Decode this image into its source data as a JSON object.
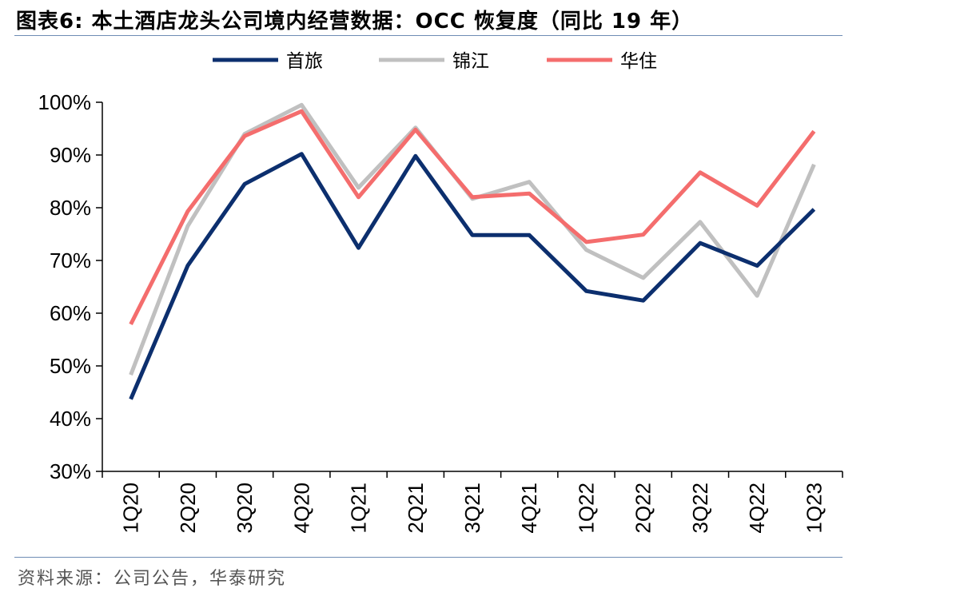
{
  "header": {
    "title": "图表6:  本土酒店龙头公司境内经营数据：OCC 恢复度（同比 19 年）"
  },
  "footer": {
    "source": "资料来源：公司公告，华泰研究"
  },
  "chart_data": {
    "type": "line",
    "categories": [
      "1Q20",
      "2Q20",
      "3Q20",
      "4Q20",
      "1Q21",
      "2Q21",
      "3Q21",
      "4Q21",
      "1Q22",
      "2Q22",
      "3Q22",
      "4Q22",
      "1Q23"
    ],
    "series": [
      {
        "name": "首旅",
        "color": "#0c2f6e",
        "values": [
          43.7,
          69,
          84.5,
          90.2,
          72.4,
          89.8,
          74.8,
          74.8,
          64.2,
          62.4,
          73.3,
          69,
          79.7
        ]
      },
      {
        "name": "锦江",
        "color": "#c0c0c0",
        "values": [
          48.3,
          76.5,
          94,
          99.5,
          83.8,
          95.2,
          81.7,
          84.9,
          72,
          66.7,
          77.3,
          63.3,
          88.2
        ]
      },
      {
        "name": "华住",
        "color": "#f46d6d",
        "values": [
          57.9,
          79.3,
          93.6,
          98.3,
          82,
          94.8,
          82,
          82.7,
          73.5,
          74.9,
          86.7,
          80.4,
          94.5
        ]
      }
    ],
    "xlabel": "",
    "ylabel": "",
    "ylim": [
      30,
      100
    ],
    "yticks": [
      30,
      40,
      50,
      60,
      70,
      80,
      90,
      100
    ],
    "ytick_labels": [
      "30%",
      "40%",
      "50%",
      "60%",
      "70%",
      "80%",
      "90%",
      "100%"
    ],
    "grid": false,
    "legend": "top"
  }
}
